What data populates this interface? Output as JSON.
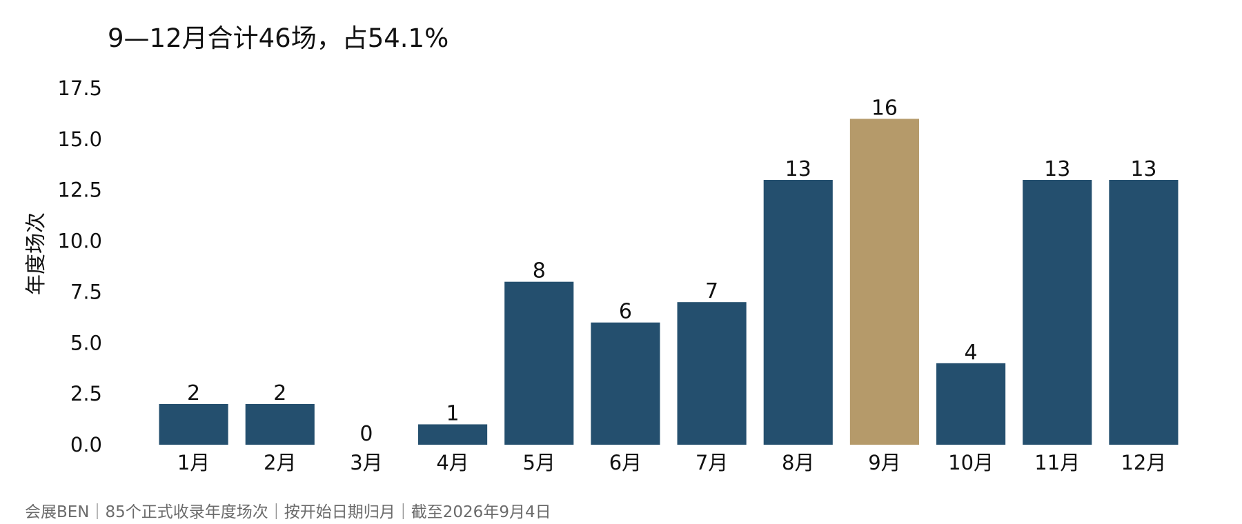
{
  "chart_data": {
    "type": "bar",
    "title": "9—12月合计46场，占54.1%",
    "xlabel": "",
    "ylabel": "年度场次",
    "categories": [
      "1月",
      "2月",
      "3月",
      "4月",
      "5月",
      "6月",
      "7月",
      "8月",
      "9月",
      "10月",
      "11月",
      "12月"
    ],
    "values": [
      2,
      2,
      0,
      1,
      8,
      6,
      7,
      13,
      16,
      4,
      13,
      13
    ],
    "ylim": [
      0,
      17.5
    ],
    "yticks": [
      "0.0",
      "2.5",
      "5.0",
      "7.5",
      "10.0",
      "12.5",
      "15.0",
      "17.5"
    ],
    "grid": false,
    "data_labels": true,
    "colors": {
      "default": "#244F6E",
      "highlight": "#B59A6A"
    },
    "highlight_category": "9月"
  },
  "footer": {
    "text": "会展BEN｜85个正式收录年度场次｜按开始日期归月｜截至2026年9月4日"
  }
}
